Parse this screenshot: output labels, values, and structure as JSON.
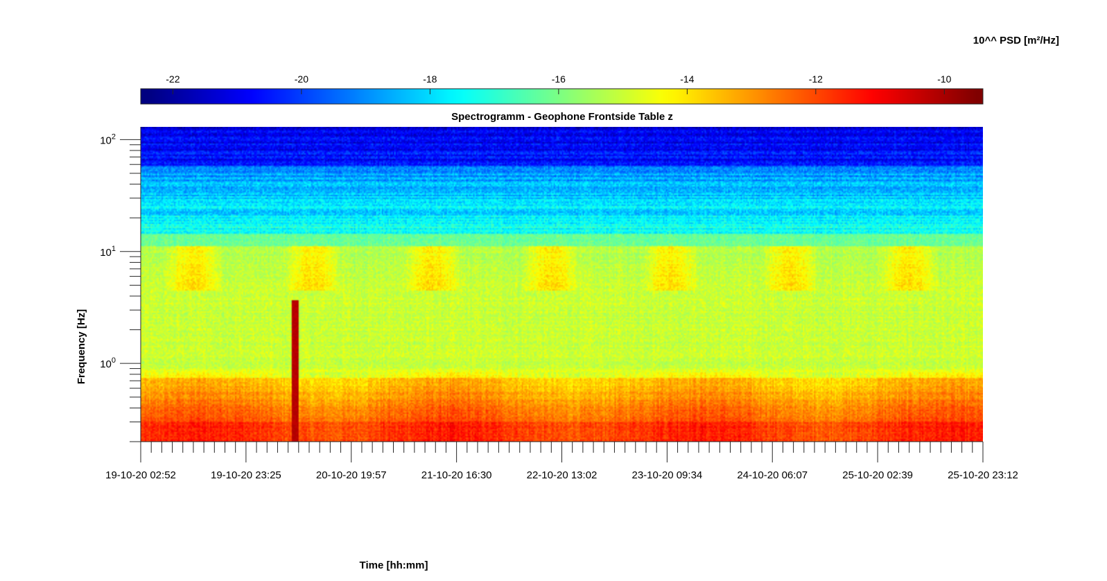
{
  "chart_data": {
    "type": "heatmap",
    "title": "Spectrogramm - Geophone Frontside Table z",
    "xlabel": "Time [hh:mm]",
    "ylabel": "Frequency [Hz]",
    "yscale": "log",
    "ylim": [
      0.2,
      130
    ],
    "y_ticks": [
      {
        "value": 1,
        "base": "10",
        "exp": "0"
      },
      {
        "value": 10,
        "base": "10",
        "exp": "1"
      },
      {
        "value": 100,
        "base": "10",
        "exp": "2"
      }
    ],
    "x_tick_labels": [
      "19-10-20 02:52",
      "19-10-20 23:25",
      "20-10-20 19:57",
      "21-10-20 16:30",
      "22-10-20 13:02",
      "23-10-20 09:34",
      "24-10-20 06:07",
      "25-10-20 02:39",
      "25-10-20 23:12"
    ],
    "colorbar": {
      "label": "10^^ PSD [m²/Hz]",
      "colormap": "jet",
      "range": [
        -22.5,
        -9.4
      ],
      "ticks": [
        -22,
        -20,
        -18,
        -16,
        -14,
        -12,
        -10
      ]
    },
    "features": {
      "transient_event_label": "",
      "transient_event_x_fraction_of_time_axis": 0.182,
      "low_frequency_level": -11.8,
      "mid_frequency_level": -14.8,
      "high_frequency_level": -20.5
    }
  }
}
